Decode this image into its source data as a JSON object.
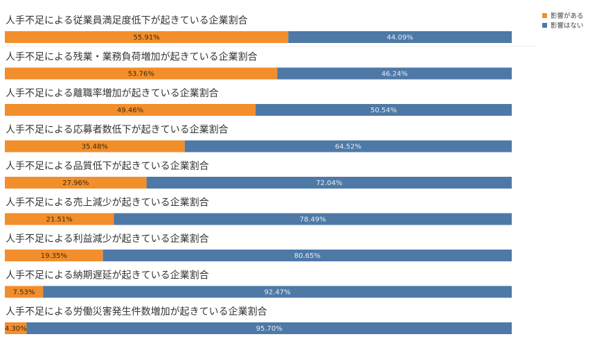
{
  "colors": {
    "affected": "#f28e2b",
    "not_affected": "#4e79a7"
  },
  "legend": {
    "items": [
      {
        "label": "影響がある",
        "color": "#f28e2b"
      },
      {
        "label": "影響はない",
        "color": "#4e79a7"
      }
    ]
  },
  "chart_data": {
    "type": "bar",
    "stacked": true,
    "orientation": "horizontal",
    "legend_position": "top-right",
    "grid": false,
    "xlim": [
      0,
      100
    ],
    "categories": [
      "人手不足による従業員満足度低下が起きている企業割合",
      "人手不足による残業・業務負荷増加が起きている企業割合",
      "人手不足による離職率増加が起きている企業割合",
      "人手不足による応募者数低下が起きている企業割合",
      "人手不足による品質低下が起きている企業割合",
      "人手不足による売上減少が起きている企業割合",
      "人手不足による利益減少が起きている企業割合",
      "人手不足による納期遅延が起きている企業割合",
      "人手不足による労働災害発生件数増加が起きている企業割合"
    ],
    "series": [
      {
        "name": "影響がある",
        "values": [
          55.91,
          53.76,
          49.46,
          35.48,
          27.96,
          21.51,
          19.35,
          7.53,
          4.3
        ],
        "labels": [
          "55.91%",
          "53.76%",
          "49.46%",
          "35.48%",
          "27.96%",
          "21.51%",
          "19.35%",
          "7.53%",
          "4.30%"
        ]
      },
      {
        "name": "影響はない",
        "values": [
          44.09,
          46.24,
          50.54,
          64.52,
          72.04,
          78.49,
          80.65,
          92.47,
          95.7
        ],
        "labels": [
          "44.09%",
          "46.24%",
          "50.54%",
          "64.52%",
          "72.04%",
          "78.49%",
          "80.65%",
          "92.47%",
          "95.70%"
        ]
      }
    ]
  }
}
